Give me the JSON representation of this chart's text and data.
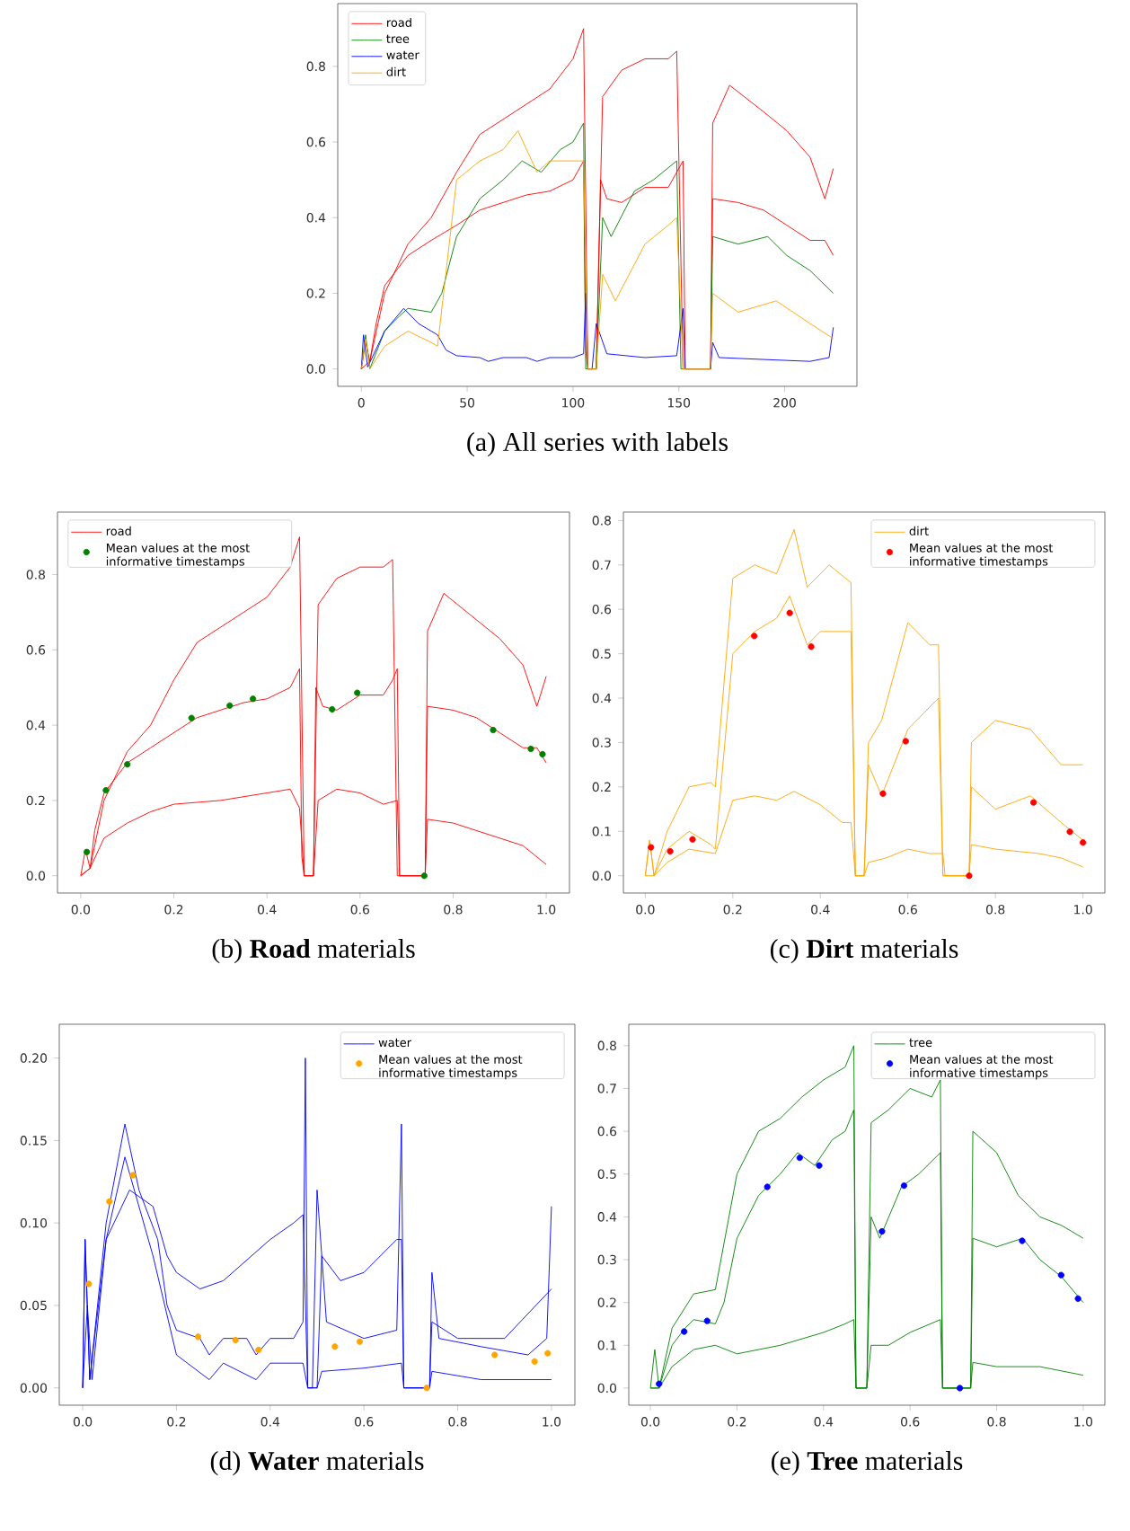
{
  "chart_data": [
    {
      "type": "line",
      "title": "(a) All series with labels",
      "xlim": [
        -11.15,
        234.15
      ],
      "ylim": [
        -0.046,
        0.966
      ],
      "xticks": [
        0,
        50,
        100,
        150,
        200
      ],
      "yticks": [
        {
          "value": 0,
          "label": "0.0"
        },
        {
          "value": 0.2,
          "label": "0.2"
        },
        {
          "value": 0.4,
          "label": "0.4"
        },
        {
          "value": 0.6,
          "label": "0.6"
        },
        {
          "value": 0.8,
          "label": "0.8"
        }
      ],
      "legend": "top left",
      "line_style": "solid",
      "series": [
        {
          "name": "road",
          "color": "#ff0000",
          "x": [
            0,
            2,
            4,
            7,
            11,
            22,
            33,
            45,
            56,
            67,
            78,
            89,
            100,
            105,
            106,
            107,
            111,
            113,
            116,
            123,
            134,
            145,
            149,
            152,
            153,
            165,
            166,
            178,
            190,
            201,
            212,
            219,
            223
          ],
          "values": [
            0,
            0.07,
            0.02,
            0.12,
            0.22,
            0.3,
            0.34,
            0.38,
            0.42,
            0.44,
            0.46,
            0.47,
            0.5,
            0.55,
            0.05,
            0,
            0,
            0.5,
            0.45,
            0.44,
            0.48,
            0.48,
            0.52,
            0.55,
            0,
            0,
            0.45,
            0.44,
            0.42,
            0.38,
            0.34,
            0.34,
            0.3
          ]
        },
        {
          "color": "#ff0000",
          "x": [
            0,
            4,
            11,
            22,
            33,
            45,
            56,
            67,
            78,
            89,
            100,
            105,
            107,
            111,
            114,
            123,
            134,
            145,
            149,
            152,
            165,
            166,
            174,
            190,
            201,
            212,
            219,
            223
          ],
          "values": [
            0,
            0.02,
            0.2,
            0.33,
            0.4,
            0.52,
            0.62,
            0.66,
            0.7,
            0.74,
            0.82,
            0.9,
            0,
            0,
            0.72,
            0.79,
            0.82,
            0.82,
            0.84,
            0,
            0,
            0.65,
            0.75,
            0.68,
            0.63,
            0.56,
            0.45,
            0.53
          ]
        },
        {
          "name": "tree",
          "color": "#008000",
          "x": [
            0,
            2,
            4,
            11,
            18,
            22,
            33,
            38,
            45,
            56,
            67,
            76,
            85,
            94,
            100,
            105,
            106,
            111,
            114,
            118,
            129,
            138,
            149,
            151,
            165,
            166,
            178,
            192,
            201,
            212,
            223
          ],
          "values": [
            0,
            0.09,
            0,
            0.1,
            0.14,
            0.16,
            0.15,
            0.2,
            0.35,
            0.45,
            0.5,
            0.55,
            0.52,
            0.58,
            0.6,
            0.65,
            0,
            0,
            0.4,
            0.35,
            0.47,
            0.5,
            0.55,
            0,
            0,
            0.35,
            0.33,
            0.35,
            0.3,
            0.26,
            0.2
          ]
        },
        {
          "name": "water",
          "color": "#0000ff",
          "x": [
            0,
            1,
            3,
            11,
            20,
            27,
            36,
            40,
            45,
            56,
            60,
            67,
            78,
            83,
            89,
            100,
            105,
            106,
            107,
            109,
            111,
            116,
            134,
            149,
            152,
            153,
            165,
            166,
            169,
            190,
            212,
            221,
            223
          ],
          "values": [
            0,
            0.09,
            0.005,
            0.1,
            0.16,
            0.12,
            0.09,
            0.05,
            0.035,
            0.03,
            0.02,
            0.03,
            0.03,
            0.02,
            0.03,
            0.03,
            0.04,
            0.2,
            0,
            0,
            0.12,
            0.04,
            0.03,
            0.035,
            0.16,
            0,
            0,
            0.07,
            0.03,
            0.025,
            0.02,
            0.03,
            0.11
          ]
        },
        {
          "name": "dirt",
          "color": "#ffa500",
          "x": [
            0,
            2,
            4,
            11,
            22,
            33,
            36,
            45,
            56,
            67,
            74,
            83,
            89,
            100,
            105,
            107,
            111,
            114,
            120,
            134,
            145,
            149,
            152,
            165,
            166,
            178,
            196,
            212,
            223
          ],
          "values": [
            0,
            0.08,
            0,
            0.06,
            0.1,
            0.07,
            0.06,
            0.5,
            0.55,
            0.58,
            0.63,
            0.52,
            0.55,
            0.55,
            0.55,
            0,
            0,
            0.25,
            0.18,
            0.33,
            0.38,
            0.4,
            0,
            0,
            0.2,
            0.15,
            0.18,
            0.12,
            0.08
          ]
        }
      ]
    },
    {
      "type": "line",
      "title": "(b) **Road** materials",
      "xlim": [
        -0.05,
        1.05
      ],
      "ylim": [
        -0.046,
        0.966
      ],
      "xticks": [
        {
          "value": 0,
          "label": "0.0"
        },
        {
          "value": 0.2,
          "label": "0.2"
        },
        {
          "value": 0.4,
          "label": "0.4"
        },
        {
          "value": 0.6,
          "label": "0.6"
        },
        {
          "value": 0.8,
          "label": "0.8"
        },
        {
          "value": 1,
          "label": "1.0"
        }
      ],
      "yticks": [
        {
          "value": 0,
          "label": "0.0"
        },
        {
          "value": 0.2,
          "label": "0.2"
        },
        {
          "value": 0.4,
          "label": "0.4"
        },
        {
          "value": 0.6,
          "label": "0.6"
        },
        {
          "value": 0.8,
          "label": "0.8"
        }
      ],
      "legend": "top left",
      "line_style": "solid",
      "series": [
        {
          "name": "road",
          "color": "#ff0000",
          "x": [
            0,
            0.01,
            0.02,
            0.03,
            0.05,
            0.1,
            0.15,
            0.2,
            0.25,
            0.3,
            0.35,
            0.4,
            0.45,
            0.47,
            0.475,
            0.48,
            0.5,
            0.505,
            0.52,
            0.55,
            0.6,
            0.65,
            0.67,
            0.68,
            0.685,
            0.74,
            0.745,
            0.8,
            0.85,
            0.9,
            0.95,
            0.98,
            1.0
          ],
          "values": [
            0,
            0.07,
            0.02,
            0.12,
            0.22,
            0.3,
            0.34,
            0.38,
            0.42,
            0.44,
            0.46,
            0.47,
            0.5,
            0.55,
            0.05,
            0,
            0,
            0.5,
            0.45,
            0.44,
            0.48,
            0.48,
            0.52,
            0.55,
            0,
            0,
            0.45,
            0.44,
            0.42,
            0.38,
            0.34,
            0.34,
            0.3
          ]
        },
        {
          "color": "#ff0000",
          "x": [
            0,
            0.02,
            0.05,
            0.1,
            0.15,
            0.2,
            0.25,
            0.3,
            0.35,
            0.4,
            0.45,
            0.47,
            0.48,
            0.5,
            0.51,
            0.55,
            0.6,
            0.65,
            0.67,
            0.68,
            0.74,
            0.745,
            0.78,
            0.85,
            0.9,
            0.95,
            0.98,
            1.0
          ],
          "values": [
            0,
            0.02,
            0.2,
            0.33,
            0.4,
            0.52,
            0.62,
            0.66,
            0.7,
            0.74,
            0.82,
            0.9,
            0,
            0,
            0.72,
            0.79,
            0.82,
            0.82,
            0.84,
            0,
            0,
            0.65,
            0.75,
            0.68,
            0.63,
            0.56,
            0.45,
            0.53
          ]
        },
        {
          "color": "#ff0000",
          "x": [
            0,
            0.02,
            0.05,
            0.1,
            0.15,
            0.2,
            0.3,
            0.4,
            0.45,
            0.47,
            0.48,
            0.5,
            0.51,
            0.55,
            0.6,
            0.65,
            0.68,
            0.685,
            0.74,
            0.745,
            0.8,
            0.9,
            0.95,
            1.0
          ],
          "values": [
            0,
            0.02,
            0.1,
            0.14,
            0.17,
            0.19,
            0.2,
            0.22,
            0.23,
            0.18,
            0,
            0,
            0.2,
            0.23,
            0.22,
            0.19,
            0.2,
            0,
            0,
            0.15,
            0.14,
            0.1,
            0.08,
            0.03
          ]
        },
        {
          "name": "Mean values at the most informative timestamps",
          "type": "scatter",
          "marker": "circle",
          "color": "#008000",
          "x": [
            0.013,
            0.054,
            0.1,
            0.238,
            0.32,
            0.37,
            0.54,
            0.594,
            0.738,
            0.886,
            0.967,
            0.992
          ],
          "values": [
            0.063,
            0.227,
            0.296,
            0.419,
            0.452,
            0.47,
            0.442,
            0.486,
            0,
            0.387,
            0.337,
            0.323
          ]
        }
      ]
    },
    {
      "type": "line",
      "title": "(c) **Dirt** materials",
      "xlim": [
        -0.05,
        1.05
      ],
      "ylim": [
        -0.039,
        0.819
      ],
      "xticks": [
        {
          "value": 0,
          "label": "0.0"
        },
        {
          "value": 0.2,
          "label": "0.2"
        },
        {
          "value": 0.4,
          "label": "0.4"
        },
        {
          "value": 0.6,
          "label": "0.6"
        },
        {
          "value": 0.8,
          "label": "0.8"
        },
        {
          "value": 1,
          "label": "1.0"
        }
      ],
      "yticks": [
        {
          "value": 0,
          "label": "0.0"
        },
        {
          "value": 0.1,
          "label": "0.1"
        },
        {
          "value": 0.2,
          "label": "0.2"
        },
        {
          "value": 0.3,
          "label": "0.3"
        },
        {
          "value": 0.4,
          "label": "0.4"
        },
        {
          "value": 0.5,
          "label": "0.5"
        },
        {
          "value": 0.6,
          "label": "0.6"
        },
        {
          "value": 0.7,
          "label": "0.7"
        },
        {
          "value": 0.8,
          "label": "0.8"
        }
      ],
      "legend": "top right",
      "line_style": "solid",
      "series": [
        {
          "name": "dirt",
          "color": "#ffa500",
          "x": [
            0,
            0.01,
            0.02,
            0.05,
            0.1,
            0.15,
            0.16,
            0.2,
            0.25,
            0.3,
            0.33,
            0.37,
            0.4,
            0.45,
            0.47,
            0.48,
            0.5,
            0.51,
            0.54,
            0.6,
            0.65,
            0.67,
            0.68,
            0.74,
            0.745,
            0.8,
            0.88,
            0.95,
            1.0
          ],
          "values": [
            0,
            0.08,
            0,
            0.06,
            0.1,
            0.07,
            0.06,
            0.5,
            0.55,
            0.58,
            0.63,
            0.52,
            0.55,
            0.55,
            0.55,
            0,
            0,
            0.25,
            0.18,
            0.33,
            0.38,
            0.4,
            0,
            0,
            0.2,
            0.15,
            0.18,
            0.12,
            0.08
          ]
        },
        {
          "color": "#ffa500",
          "x": [
            0,
            0.01,
            0.02,
            0.05,
            0.1,
            0.15,
            0.16,
            0.2,
            0.25,
            0.3,
            0.34,
            0.37,
            0.42,
            0.47,
            0.48,
            0.5,
            0.51,
            0.54,
            0.6,
            0.65,
            0.67,
            0.68,
            0.74,
            0.745,
            0.8,
            0.88,
            0.95,
            1.0
          ],
          "values": [
            0,
            0.08,
            0,
            0.1,
            0.2,
            0.21,
            0.2,
            0.67,
            0.7,
            0.68,
            0.78,
            0.65,
            0.7,
            0.66,
            0,
            0,
            0.3,
            0.35,
            0.57,
            0.52,
            0.52,
            0,
            0,
            0.3,
            0.35,
            0.33,
            0.25,
            0.25
          ]
        },
        {
          "color": "#ffa500",
          "x": [
            0,
            0.02,
            0.05,
            0.1,
            0.16,
            0.2,
            0.25,
            0.3,
            0.34,
            0.4,
            0.45,
            0.47,
            0.48,
            0.5,
            0.51,
            0.55,
            0.6,
            0.65,
            0.68,
            0.685,
            0.74,
            0.745,
            0.8,
            0.9,
            0.95,
            1.0
          ],
          "values": [
            0,
            0,
            0.03,
            0.06,
            0.05,
            0.17,
            0.18,
            0.17,
            0.19,
            0.16,
            0.12,
            0.12,
            0,
            0,
            0.03,
            0.04,
            0.06,
            0.05,
            0.05,
            0,
            0,
            0.07,
            0.06,
            0.05,
            0.04,
            0.02
          ]
        },
        {
          "name": "Mean values at the most informative timestamps",
          "type": "scatter",
          "marker": "circle",
          "color": "#ff0000",
          "x": [
            0.013,
            0.057,
            0.108,
            0.249,
            0.33,
            0.379,
            0.543,
            0.595,
            0.74,
            0.887,
            0.97,
            1.0
          ],
          "values": [
            0.064,
            0.055,
            0.082,
            0.54,
            0.592,
            0.516,
            0.185,
            0.303,
            0,
            0.165,
            0.099,
            0.075
          ]
        }
      ]
    },
    {
      "type": "line",
      "title": "(d) **Water** materials",
      "xlim": [
        -0.05,
        1.05
      ],
      "ylim": [
        -0.0105,
        0.2205
      ],
      "xticks": [
        {
          "value": 0,
          "label": "0.0"
        },
        {
          "value": 0.2,
          "label": "0.2"
        },
        {
          "value": 0.4,
          "label": "0.4"
        },
        {
          "value": 0.6,
          "label": "0.6"
        },
        {
          "value": 0.8,
          "label": "0.8"
        },
        {
          "value": 1,
          "label": "1.0"
        }
      ],
      "yticks": [
        {
          "value": 0,
          "label": "0.00"
        },
        {
          "value": 0.05,
          "label": "0.05"
        },
        {
          "value": 0.1,
          "label": "0.10"
        },
        {
          "value": 0.15,
          "label": "0.15"
        },
        {
          "value": 0.2,
          "label": "0.20"
        }
      ],
      "legend": "top right",
      "line_style": "solid",
      "series": [
        {
          "name": "water",
          "color": "#0000ff",
          "x": [
            0,
            0.005,
            0.015,
            0.05,
            0.09,
            0.12,
            0.16,
            0.18,
            0.2,
            0.25,
            0.27,
            0.3,
            0.35,
            0.37,
            0.4,
            0.45,
            0.47,
            0.475,
            0.48,
            0.49,
            0.5,
            0.52,
            0.6,
            0.67,
            0.68,
            0.685,
            0.74,
            0.745,
            0.76,
            0.85,
            0.95,
            0.99,
            1.0
          ],
          "values": [
            0,
            0.09,
            0.005,
            0.1,
            0.16,
            0.12,
            0.09,
            0.05,
            0.035,
            0.03,
            0.02,
            0.03,
            0.03,
            0.02,
            0.03,
            0.03,
            0.04,
            0.2,
            0,
            0,
            0.12,
            0.04,
            0.03,
            0.035,
            0.16,
            0,
            0,
            0.07,
            0.03,
            0.025,
            0.02,
            0.03,
            0.11
          ]
        },
        {
          "color": "#0000ff",
          "x": [
            0,
            0.005,
            0.015,
            0.05,
            0.1,
            0.15,
            0.18,
            0.2,
            0.25,
            0.3,
            0.4,
            0.45,
            0.47,
            0.48,
            0.5,
            0.51,
            0.55,
            0.6,
            0.67,
            0.68,
            0.685,
            0.74,
            0.745,
            0.8,
            0.9,
            1.0
          ],
          "values": [
            0,
            0.09,
            0.005,
            0.09,
            0.12,
            0.11,
            0.08,
            0.07,
            0.06,
            0.065,
            0.09,
            0.1,
            0.105,
            0,
            0,
            0.08,
            0.065,
            0.07,
            0.09,
            0.09,
            0,
            0,
            0.04,
            0.03,
            0.03,
            0.06
          ]
        },
        {
          "color": "#0000ff",
          "x": [
            0,
            0.01,
            0.02,
            0.05,
            0.09,
            0.15,
            0.2,
            0.27,
            0.3,
            0.37,
            0.4,
            0.47,
            0.48,
            0.5,
            0.51,
            0.6,
            0.68,
            0.685,
            0.74,
            0.745,
            0.85,
            1.0
          ],
          "values": [
            0,
            0.05,
            0.005,
            0.09,
            0.14,
            0.08,
            0.02,
            0.005,
            0.015,
            0.005,
            0.015,
            0.015,
            0,
            0,
            0.01,
            0.012,
            0.015,
            0,
            0,
            0.01,
            0.005,
            0.005
          ]
        },
        {
          "name": "Mean values at the most informative timestamps",
          "type": "scatter",
          "marker": "circle",
          "color": "#ffa500",
          "x": [
            0.013,
            0.057,
            0.107,
            0.246,
            0.326,
            0.375,
            0.538,
            0.591,
            0.734,
            0.879,
            0.964,
            0.992
          ],
          "values": [
            0.063,
            0.113,
            0.129,
            0.031,
            0.029,
            0.023,
            0.025,
            0.028,
            0,
            0.02,
            0.016,
            0.021
          ]
        }
      ]
    },
    {
      "type": "line",
      "title": "(e) **Tree** materials",
      "xlim": [
        -0.05,
        1.05
      ],
      "ylim": [
        -0.04,
        0.85
      ],
      "xticks": [
        {
          "value": 0,
          "label": "0.0"
        },
        {
          "value": 0.2,
          "label": "0.2"
        },
        {
          "value": 0.4,
          "label": "0.4"
        },
        {
          "value": 0.6,
          "label": "0.6"
        },
        {
          "value": 0.8,
          "label": "0.8"
        },
        {
          "value": 1,
          "label": "1.0"
        }
      ],
      "yticks": [
        {
          "value": 0,
          "label": "0.0"
        },
        {
          "value": 0.1,
          "label": "0.1"
        },
        {
          "value": 0.2,
          "label": "0.2"
        },
        {
          "value": 0.3,
          "label": "0.3"
        },
        {
          "value": 0.4,
          "label": "0.4"
        },
        {
          "value": 0.5,
          "label": "0.5"
        },
        {
          "value": 0.6,
          "label": "0.6"
        },
        {
          "value": 0.7,
          "label": "0.7"
        },
        {
          "value": 0.8,
          "label": "0.8"
        }
      ],
      "legend": "top right",
      "line_style": "solid",
      "series": [
        {
          "name": "tree",
          "color": "#008000",
          "x": [
            0,
            0.01,
            0.02,
            0.05,
            0.08,
            0.1,
            0.15,
            0.17,
            0.2,
            0.25,
            0.3,
            0.34,
            0.38,
            0.42,
            0.45,
            0.47,
            0.475,
            0.5,
            0.51,
            0.53,
            0.58,
            0.62,
            0.67,
            0.675,
            0.74,
            0.745,
            0.8,
            0.86,
            0.9,
            0.95,
            1.0
          ],
          "values": [
            0,
            0.09,
            0,
            0.1,
            0.14,
            0.16,
            0.15,
            0.2,
            0.35,
            0.45,
            0.5,
            0.55,
            0.52,
            0.58,
            0.6,
            0.65,
            0,
            0,
            0.4,
            0.35,
            0.47,
            0.5,
            0.55,
            0,
            0,
            0.35,
            0.33,
            0.35,
            0.3,
            0.26,
            0.2
          ]
        },
        {
          "color": "#008000",
          "x": [
            0,
            0.02,
            0.05,
            0.1,
            0.15,
            0.2,
            0.25,
            0.3,
            0.35,
            0.4,
            0.45,
            0.47,
            0.475,
            0.5,
            0.51,
            0.55,
            0.6,
            0.65,
            0.67,
            0.675,
            0.74,
            0.745,
            0.8,
            0.85,
            0.9,
            0.95,
            1.0
          ],
          "values": [
            0,
            0,
            0.14,
            0.22,
            0.23,
            0.5,
            0.6,
            0.63,
            0.68,
            0.72,
            0.75,
            0.8,
            0,
            0,
            0.62,
            0.65,
            0.7,
            0.68,
            0.72,
            0,
            0,
            0.6,
            0.55,
            0.45,
            0.4,
            0.38,
            0.35
          ]
        },
        {
          "color": "#008000",
          "x": [
            0,
            0.02,
            0.05,
            0.1,
            0.15,
            0.2,
            0.3,
            0.4,
            0.45,
            0.47,
            0.475,
            0.5,
            0.51,
            0.55,
            0.6,
            0.67,
            0.675,
            0.74,
            0.745,
            0.8,
            0.9,
            1.0
          ],
          "values": [
            0,
            0,
            0.05,
            0.09,
            0.1,
            0.08,
            0.1,
            0.13,
            0.15,
            0.16,
            0,
            0,
            0.1,
            0.1,
            0.13,
            0.16,
            0,
            0,
            0.06,
            0.05,
            0.05,
            0.03
          ]
        },
        {
          "name": "Mean values at the most informative timestamps",
          "type": "scatter",
          "marker": "circle",
          "color": "#0000ff",
          "x": [
            0.02,
            0.078,
            0.131,
            0.27,
            0.345,
            0.39,
            0.535,
            0.586,
            0.715,
            0.859,
            0.949,
            0.988
          ],
          "values": [
            0.01,
            0.132,
            0.157,
            0.47,
            0.538,
            0.52,
            0.366,
            0.473,
            0,
            0.344,
            0.264,
            0.209
          ]
        }
      ]
    }
  ]
}
